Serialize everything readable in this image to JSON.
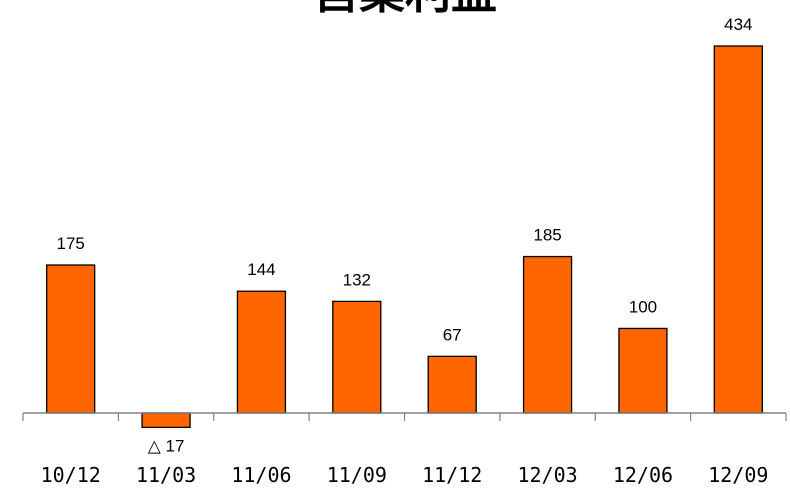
{
  "chart_data": {
    "type": "bar",
    "title": "営業利益",
    "xlabel": "",
    "ylabel": "",
    "categories": [
      "10/12",
      "11/03",
      "11/06",
      "11/09",
      "11/12",
      "12/03",
      "12/06",
      "12/09"
    ],
    "values": [
      175,
      -17,
      144,
      132,
      67,
      185,
      100,
      434
    ],
    "data_labels": [
      "175",
      "△ 17",
      "144",
      "132",
      "67",
      "185",
      "100",
      "434"
    ],
    "ylim": [
      -17,
      434
    ],
    "grid": false,
    "legend": "none",
    "colors": {
      "bar_fill": "#ff6600",
      "bar_stroke": "#000000",
      "axis": "#808080"
    }
  }
}
